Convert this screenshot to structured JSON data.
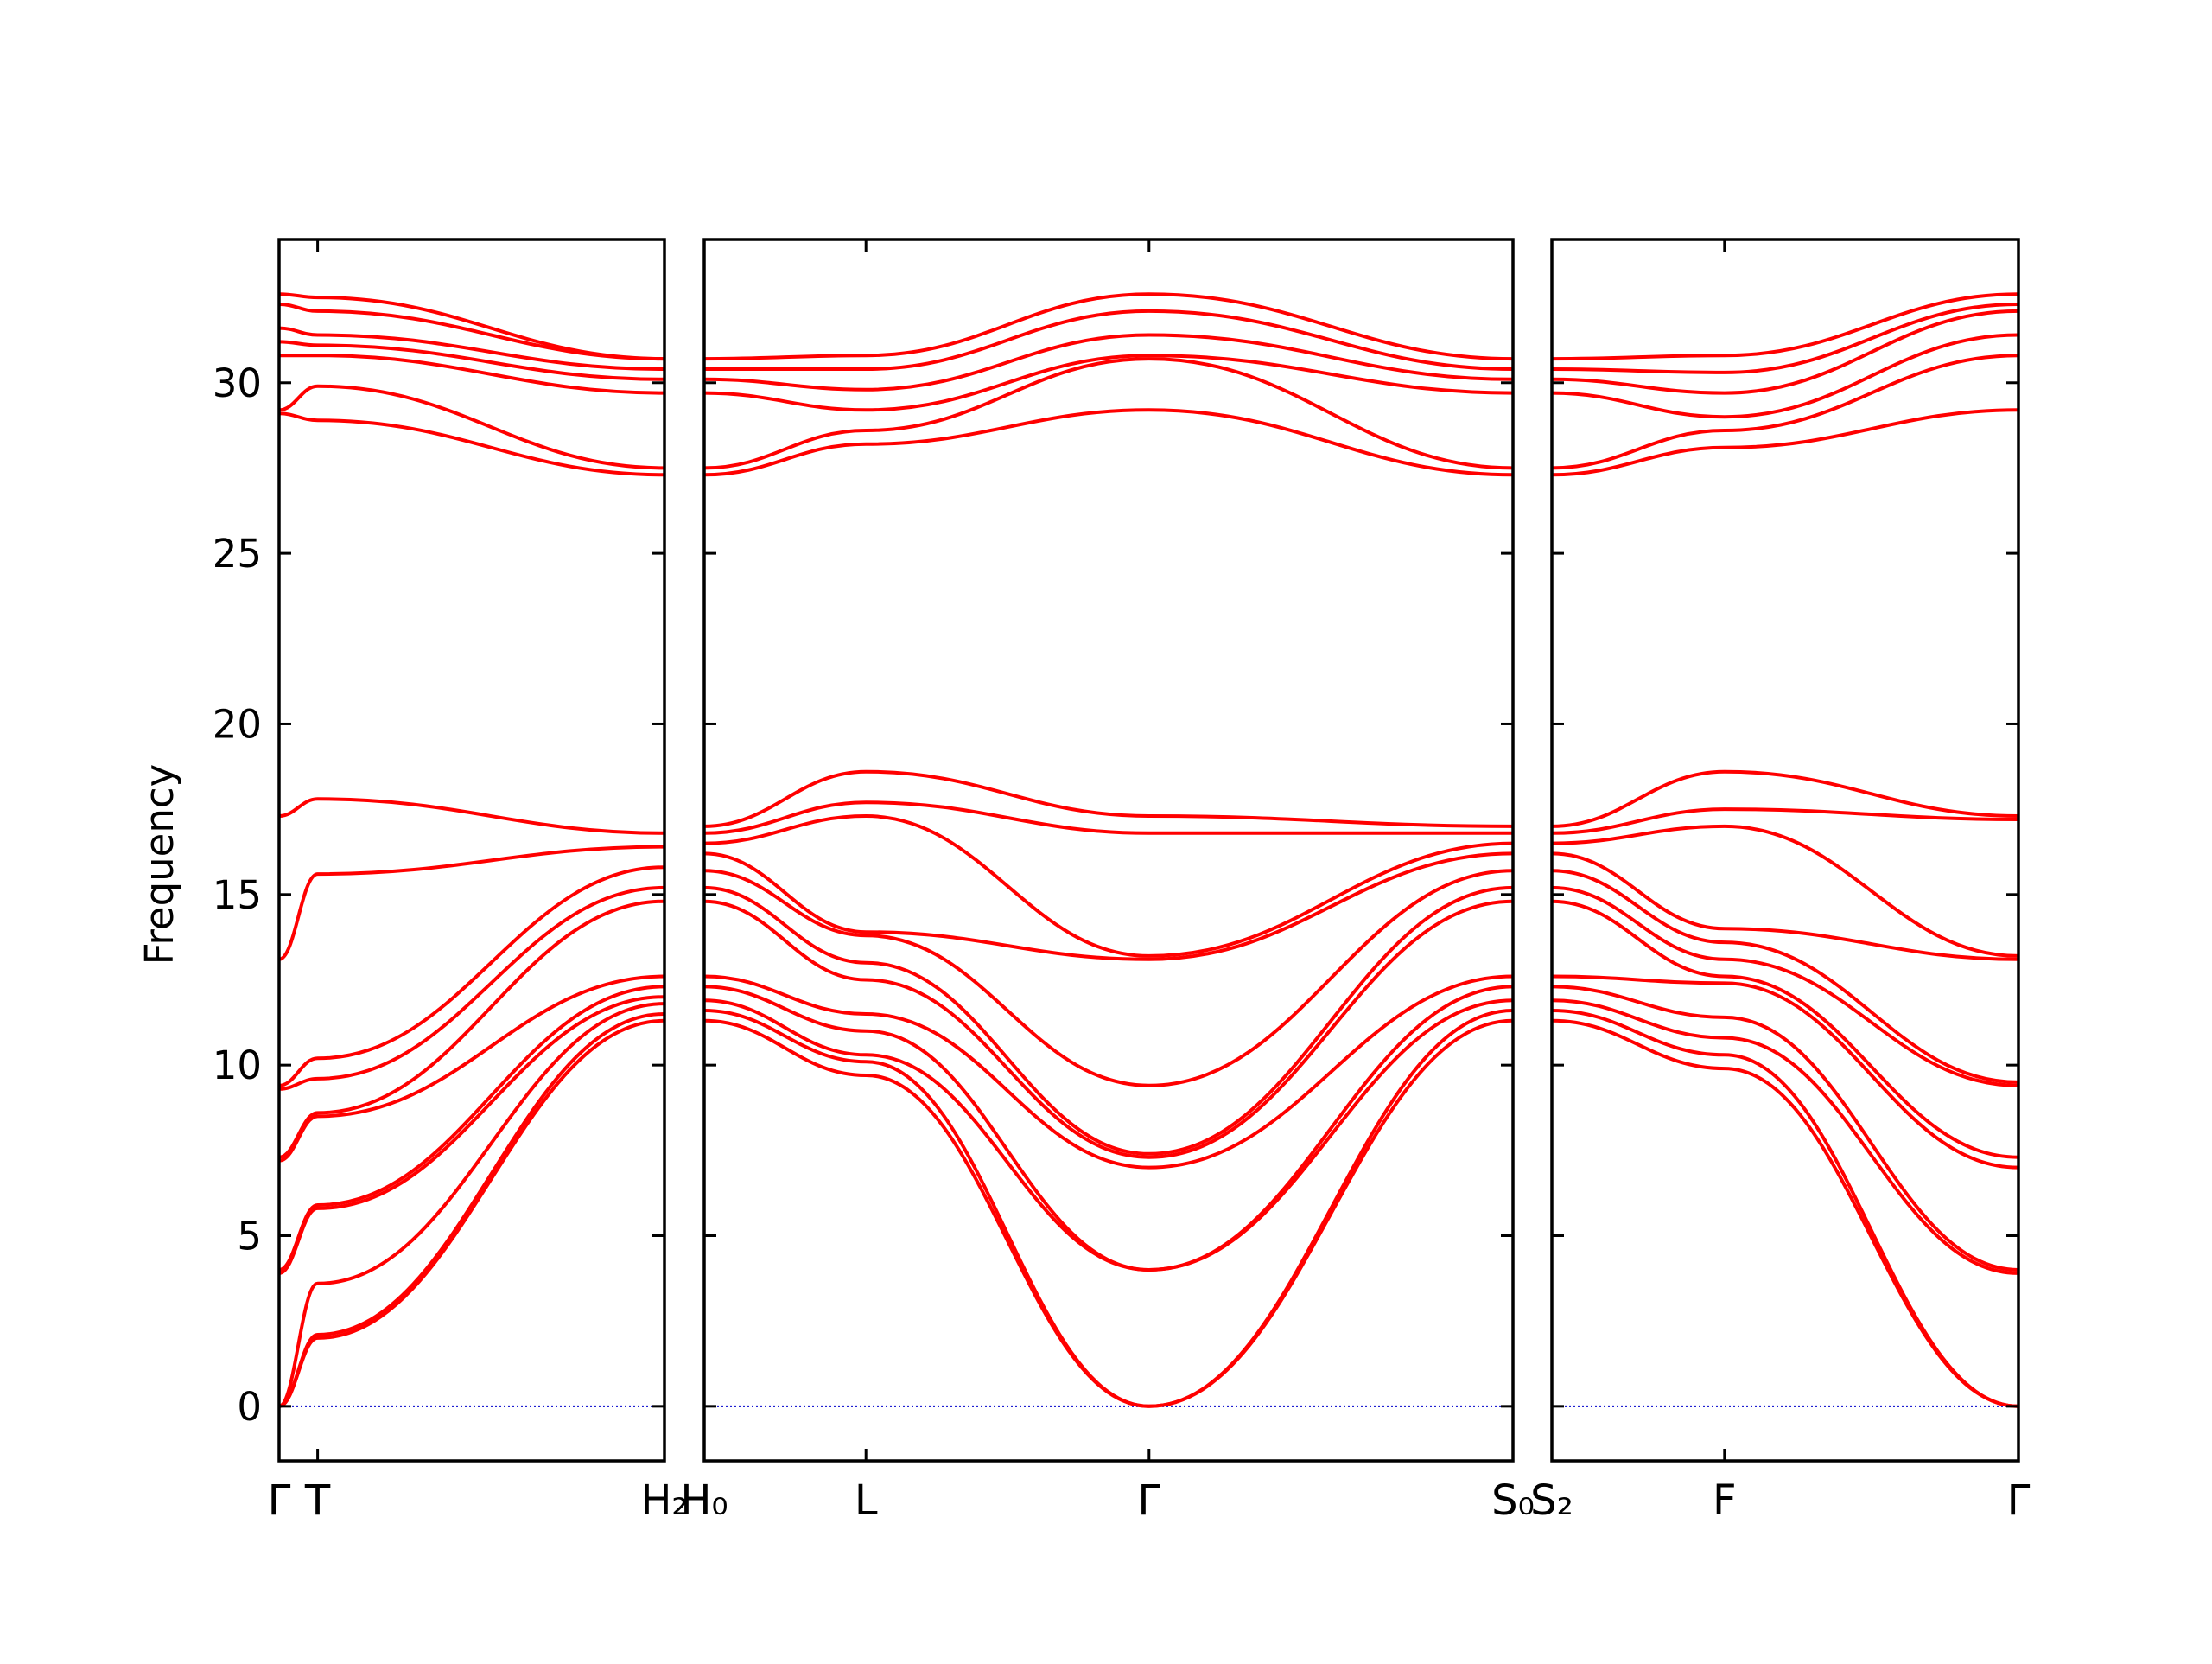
{
  "chart_data": {
    "type": "line",
    "title": "",
    "ylabel": "Frequency",
    "ylim": [
      -1.6,
      34.2
    ],
    "y_ticks": [
      0,
      5,
      10,
      15,
      20,
      25,
      30
    ],
    "grid": false,
    "zero_line_color": "#0000cc",
    "band_color": "#ff0000",
    "panels": [
      {
        "x_range": [
          0,
          10
        ],
        "tick_positions": [
          0,
          1,
          10
        ],
        "tick_labels": [
          "Γ",
          "T",
          "H₂"
        ],
        "band_series": [
          {
            "x": [
              0,
              1,
              10
            ],
            "values": [
              0,
              2.0,
              11.3
            ]
          },
          {
            "x": [
              0,
              1,
              10
            ],
            "values": [
              0,
              2.1,
              11.5
            ]
          },
          {
            "x": [
              0,
              1,
              10
            ],
            "values": [
              0,
              3.6,
              11.8
            ]
          },
          {
            "x": [
              0,
              1,
              10
            ],
            "values": [
              3.9,
              5.8,
              12.0
            ]
          },
          {
            "x": [
              0,
              1,
              10
            ],
            "values": [
              4.0,
              5.9,
              12.3
            ]
          },
          {
            "x": [
              0,
              1,
              10
            ],
            "values": [
              7.2,
              8.5,
              12.6
            ]
          },
          {
            "x": [
              0,
              1,
              10
            ],
            "values": [
              7.3,
              8.6,
              14.8
            ]
          },
          {
            "x": [
              0,
              1,
              10
            ],
            "values": [
              9.3,
              9.6,
              15.2
            ]
          },
          {
            "x": [
              0,
              1,
              10
            ],
            "values": [
              9.4,
              10.2,
              15.8
            ]
          },
          {
            "x": [
              0,
              1,
              10
            ],
            "values": [
              13.1,
              15.6,
              16.4
            ]
          },
          {
            "x": [
              0,
              1,
              10
            ],
            "values": [
              17.3,
              17.8,
              16.8
            ]
          },
          {
            "x": [
              0,
              1,
              10
            ],
            "values": [
              29.1,
              28.9,
              27.3
            ]
          },
          {
            "x": [
              0,
              1,
              10
            ],
            "values": [
              29.2,
              29.9,
              27.5
            ]
          },
          {
            "x": [
              0,
              1,
              10
            ],
            "values": [
              30.8,
              30.8,
              29.7
            ]
          },
          {
            "x": [
              0,
              1,
              10
            ],
            "values": [
              31.2,
              31.1,
              30.1
            ]
          },
          {
            "x": [
              0,
              1,
              10
            ],
            "values": [
              31.6,
              31.4,
              30.4
            ]
          },
          {
            "x": [
              0,
              1,
              10
            ],
            "values": [
              32.3,
              32.1,
              30.7
            ]
          },
          {
            "x": [
              0,
              1,
              10
            ],
            "values": [
              32.6,
              32.5,
              30.7
            ]
          }
        ]
      },
      {
        "x_range": [
          0,
          10
        ],
        "tick_positions": [
          0,
          2,
          5.5,
          10
        ],
        "tick_labels": [
          "H₀",
          "L",
          "Γ",
          "S₀"
        ],
        "band_series": [
          {
            "x": [
              0,
              2,
              5.5,
              10
            ],
            "values": [
              11.3,
              9.7,
              0,
              11.3
            ]
          },
          {
            "x": [
              0,
              2,
              5.5,
              10
            ],
            "values": [
              11.6,
              10.1,
              0,
              11.6
            ]
          },
          {
            "x": [
              0,
              2,
              5.5,
              10
            ],
            "values": [
              11.9,
              10.3,
              4.0,
              11.9
            ]
          },
          {
            "x": [
              0,
              2,
              5.5,
              10
            ],
            "values": [
              12.3,
              11.0,
              4.0,
              12.3
            ]
          },
          {
            "x": [
              0,
              2,
              5.5,
              10
            ],
            "values": [
              12.6,
              11.5,
              7.0,
              12.6
            ]
          },
          {
            "x": [
              0,
              2,
              5.5,
              10
            ],
            "values": [
              14.8,
              12.5,
              7.3,
              14.8
            ]
          },
          {
            "x": [
              0,
              2,
              5.5,
              10
            ],
            "values": [
              15.2,
              13.0,
              7.4,
              15.2
            ]
          },
          {
            "x": [
              0,
              2,
              5.5,
              10
            ],
            "values": [
              15.7,
              13.8,
              9.4,
              15.7
            ]
          },
          {
            "x": [
              0,
              2,
              5.5,
              10
            ],
            "values": [
              16.2,
              13.9,
              13.1,
              16.2
            ]
          },
          {
            "x": [
              0,
              2,
              5.5,
              10
            ],
            "values": [
              16.5,
              17.3,
              13.2,
              16.5
            ]
          },
          {
            "x": [
              0,
              2,
              5.5,
              10
            ],
            "values": [
              16.8,
              17.7,
              16.8,
              16.8
            ]
          },
          {
            "x": [
              0,
              2,
              5.5,
              10
            ],
            "values": [
              17.0,
              18.6,
              17.3,
              17.0
            ]
          },
          {
            "x": [
              0,
              2,
              5.5,
              10
            ],
            "values": [
              27.3,
              28.2,
              29.2,
              27.3
            ]
          },
          {
            "x": [
              0,
              2,
              5.5,
              10
            ],
            "values": [
              27.5,
              28.6,
              30.7,
              27.5
            ]
          },
          {
            "x": [
              0,
              2,
              5.5,
              10
            ],
            "values": [
              29.7,
              29.2,
              30.8,
              29.7
            ]
          },
          {
            "x": [
              0,
              2,
              5.5,
              10
            ],
            "values": [
              30.1,
              29.8,
              31.4,
              30.1
            ]
          },
          {
            "x": [
              0,
              2,
              5.5,
              10
            ],
            "values": [
              30.4,
              30.4,
              32.1,
              30.4
            ]
          },
          {
            "x": [
              0,
              2,
              5.5,
              10
            ],
            "values": [
              30.7,
              30.8,
              32.6,
              30.7
            ]
          }
        ]
      },
      {
        "x_range": [
          0,
          10
        ],
        "tick_positions": [
          0,
          3.7,
          10
        ],
        "tick_labels": [
          "S₂",
          "F",
          "Γ"
        ],
        "band_series": [
          {
            "x": [
              0,
              3.7,
              10
            ],
            "values": [
              11.3,
              9.9,
              0
            ]
          },
          {
            "x": [
              0,
              3.7,
              10
            ],
            "values": [
              11.6,
              10.3,
              0
            ]
          },
          {
            "x": [
              0,
              3.7,
              10
            ],
            "values": [
              11.9,
              10.8,
              3.9
            ]
          },
          {
            "x": [
              0,
              3.7,
              10
            ],
            "values": [
              12.3,
              11.4,
              4.0
            ]
          },
          {
            "x": [
              0,
              3.7,
              10
            ],
            "values": [
              12.6,
              12.4,
              7.0
            ]
          },
          {
            "x": [
              0,
              3.7,
              10
            ],
            "values": [
              14.8,
              12.6,
              7.3
            ]
          },
          {
            "x": [
              0,
              3.7,
              10
            ],
            "values": [
              15.2,
              13.1,
              9.4
            ]
          },
          {
            "x": [
              0,
              3.7,
              10
            ],
            "values": [
              15.7,
              13.6,
              9.5
            ]
          },
          {
            "x": [
              0,
              3.7,
              10
            ],
            "values": [
              16.2,
              14.0,
              13.1
            ]
          },
          {
            "x": [
              0,
              3.7,
              10
            ],
            "values": [
              16.5,
              17.0,
              13.2
            ]
          },
          {
            "x": [
              0,
              3.7,
              10
            ],
            "values": [
              16.8,
              17.5,
              17.2
            ]
          },
          {
            "x": [
              0,
              3.7,
              10
            ],
            "values": [
              17.0,
              18.6,
              17.3
            ]
          },
          {
            "x": [
              0,
              3.7,
              10
            ],
            "values": [
              27.3,
              28.1,
              29.2
            ]
          },
          {
            "x": [
              0,
              3.7,
              10
            ],
            "values": [
              27.5,
              28.6,
              30.8
            ]
          },
          {
            "x": [
              0,
              3.7,
              10
            ],
            "values": [
              29.7,
              29.0,
              31.4
            ]
          },
          {
            "x": [
              0,
              3.7,
              10
            ],
            "values": [
              30.1,
              29.7,
              32.1
            ]
          },
          {
            "x": [
              0,
              3.7,
              10
            ],
            "values": [
              30.4,
              30.3,
              32.3
            ]
          },
          {
            "x": [
              0,
              3.7,
              10
            ],
            "values": [
              30.7,
              30.8,
              32.6
            ]
          }
        ]
      }
    ]
  }
}
